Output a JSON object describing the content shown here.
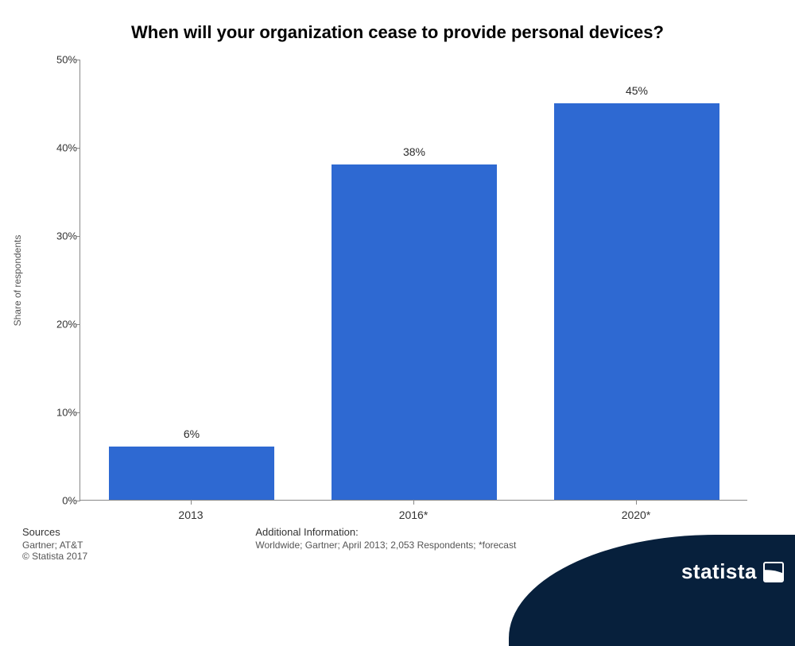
{
  "chart": {
    "type": "bar",
    "title": "When will your organization cease to provide personal devices?",
    "title_fontsize": 22,
    "title_color": "#000000",
    "ylabel": "Share of respondents",
    "ylabel_fontsize": 12,
    "ylabel_color": "#555555",
    "ylim": [
      0,
      50
    ],
    "ytick_step": 10,
    "ytick_suffix": "%",
    "axis_color": "#888888",
    "tick_fontsize": 13,
    "tick_color": "#333333",
    "background_color": "#ffffff",
    "bar_color": "#2e69d2",
    "bar_width_ratio": 0.74,
    "value_label_fontsize": 14,
    "value_label_color": "#2b2b2b",
    "value_label_suffix": "%",
    "categories": [
      "2013",
      "2016*",
      "2020*"
    ],
    "values": [
      6,
      38,
      45
    ]
  },
  "footer": {
    "sources_heading": "Sources",
    "sources_lines": [
      "Gartner; AT&T",
      "© Statista 2017"
    ],
    "info_heading": "Additional Information:",
    "info_line": "Worldwide; Gartner; April 2013; 2,053 Respondents; *forecast"
  },
  "logo": {
    "text": "statista",
    "bg_color": "#07203c",
    "text_color": "#ffffff"
  }
}
